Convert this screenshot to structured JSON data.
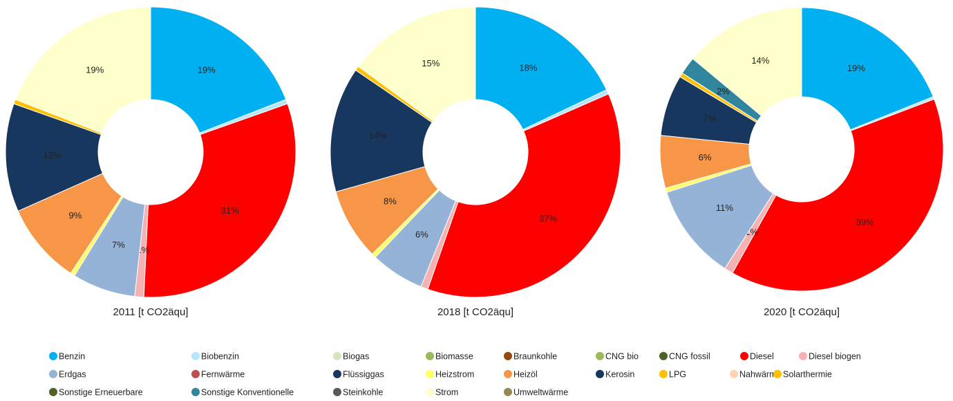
{
  "chart_data": [
    {
      "type": "donut",
      "title": "2011 [t CO2äqu]",
      "categories": [
        "Benzin",
        "Biobenzin",
        "Biogas",
        "Biomasse",
        "Braunkohle",
        "CNG bio",
        "CNG fossil",
        "Diesel",
        "Diesel biogen",
        "Erdgas",
        "Fernwärme",
        "Flüssiggas",
        "Heizstrom",
        "Heizöl",
        "Kerosin",
        "LPG",
        "Nahwärme",
        "Solarthermie",
        "Sonstige Erneuerbare",
        "Sonstige Konventionelle",
        "Steinkohle",
        "Strom",
        "Umweltwärme"
      ],
      "colors": [
        "#00b0f0",
        "#b7e6f9",
        "#d7e4bd",
        "#9bbb59",
        "#974706",
        "#9bbb59",
        "#4f6228",
        "#ff0000",
        "#f6b2b2",
        "#95b3d7",
        "#c0504d",
        "#17375e",
        "#ffff66",
        "#f79646",
        "#17375e",
        "#ffc000",
        "#fcd5b5",
        "#ffc000",
        "#4f6228",
        "#31859c",
        "#595959",
        "#ffffcc",
        "#948a54"
      ],
      "values": [
        19,
        0.5,
        0,
        0,
        0,
        0,
        0,
        31,
        1,
        7,
        0,
        0,
        0.5,
        9,
        12,
        0.5,
        0,
        0,
        0,
        0,
        0,
        19,
        0
      ],
      "value_labels": [
        "19%",
        null,
        null,
        null,
        null,
        null,
        null,
        "31%",
        "1%",
        "7%",
        null,
        null,
        null,
        "9%",
        "12%",
        null,
        null,
        null,
        null,
        null,
        null,
        "19%",
        null
      ]
    },
    {
      "type": "donut",
      "title": "2018 [t CO2äqu]",
      "categories": [
        "Benzin",
        "Biobenzin",
        "Biogas",
        "Biomasse",
        "Braunkohle",
        "CNG bio",
        "CNG fossil",
        "Diesel",
        "Diesel biogen",
        "Erdgas",
        "Fernwärme",
        "Flüssiggas",
        "Heizstrom",
        "Heizöl",
        "Kerosin",
        "LPG",
        "Nahwärme",
        "Solarthermie",
        "Sonstige Erneuerbare",
        "Sonstige Konventionelle",
        "Steinkohle",
        "Strom",
        "Umweltwärme"
      ],
      "colors": [
        "#00b0f0",
        "#b7e6f9",
        "#d7e4bd",
        "#9bbb59",
        "#974706",
        "#9bbb59",
        "#4f6228",
        "#ff0000",
        "#f6b2b2",
        "#95b3d7",
        "#c0504d",
        "#17375e",
        "#ffff66",
        "#f79646",
        "#17375e",
        "#ffc000",
        "#fcd5b5",
        "#ffc000",
        "#4f6228",
        "#31859c",
        "#595959",
        "#ffffcc",
        "#948a54"
      ],
      "values": [
        18,
        0.5,
        0,
        0,
        0,
        0,
        0,
        37,
        0.8,
        6,
        0,
        0,
        0.5,
        8,
        14,
        0.5,
        0,
        0,
        0,
        0,
        0,
        15,
        0
      ],
      "value_labels": [
        "18%",
        null,
        null,
        null,
        null,
        null,
        null,
        "37%",
        null,
        "6%",
        null,
        null,
        null,
        "8%",
        "14%",
        null,
        null,
        null,
        null,
        null,
        null,
        "15%",
        null
      ]
    },
    {
      "type": "donut",
      "title": "2020 [t CO2äqu]",
      "categories": [
        "Benzin",
        "Biobenzin",
        "Biogas",
        "Biomasse",
        "Braunkohle",
        "CNG bio",
        "CNG fossil",
        "Diesel",
        "Diesel biogen",
        "Erdgas",
        "Fernwärme",
        "Flüssiggas",
        "Heizstrom",
        "Heizöl",
        "Kerosin",
        "LPG",
        "Nahwärme",
        "Solarthermie",
        "Sonstige Erneuerbare",
        "Sonstige Konventionelle",
        "Steinkohle",
        "Strom",
        "Umweltwärme"
      ],
      "colors": [
        "#00b0f0",
        "#b7e6f9",
        "#d7e4bd",
        "#9bbb59",
        "#974706",
        "#9bbb59",
        "#4f6228",
        "#ff0000",
        "#f6b2b2",
        "#95b3d7",
        "#c0504d",
        "#17375e",
        "#ffff66",
        "#f79646",
        "#17375e",
        "#ffc000",
        "#fcd5b5",
        "#ffc000",
        "#4f6228",
        "#31859c",
        "#595959",
        "#ffffcc",
        "#948a54"
      ],
      "values": [
        19,
        0.3,
        0,
        0,
        0,
        0,
        0,
        39,
        1,
        11,
        0,
        0,
        0.5,
        6,
        7,
        0.5,
        0,
        0,
        0,
        2,
        0,
        14,
        0
      ],
      "value_labels": [
        "19%",
        null,
        null,
        null,
        null,
        null,
        null,
        "39%",
        "1%",
        "11%",
        null,
        null,
        null,
        "6%",
        "7%",
        null,
        null,
        null,
        null,
        "2%",
        null,
        "14%",
        null
      ]
    }
  ]
}
